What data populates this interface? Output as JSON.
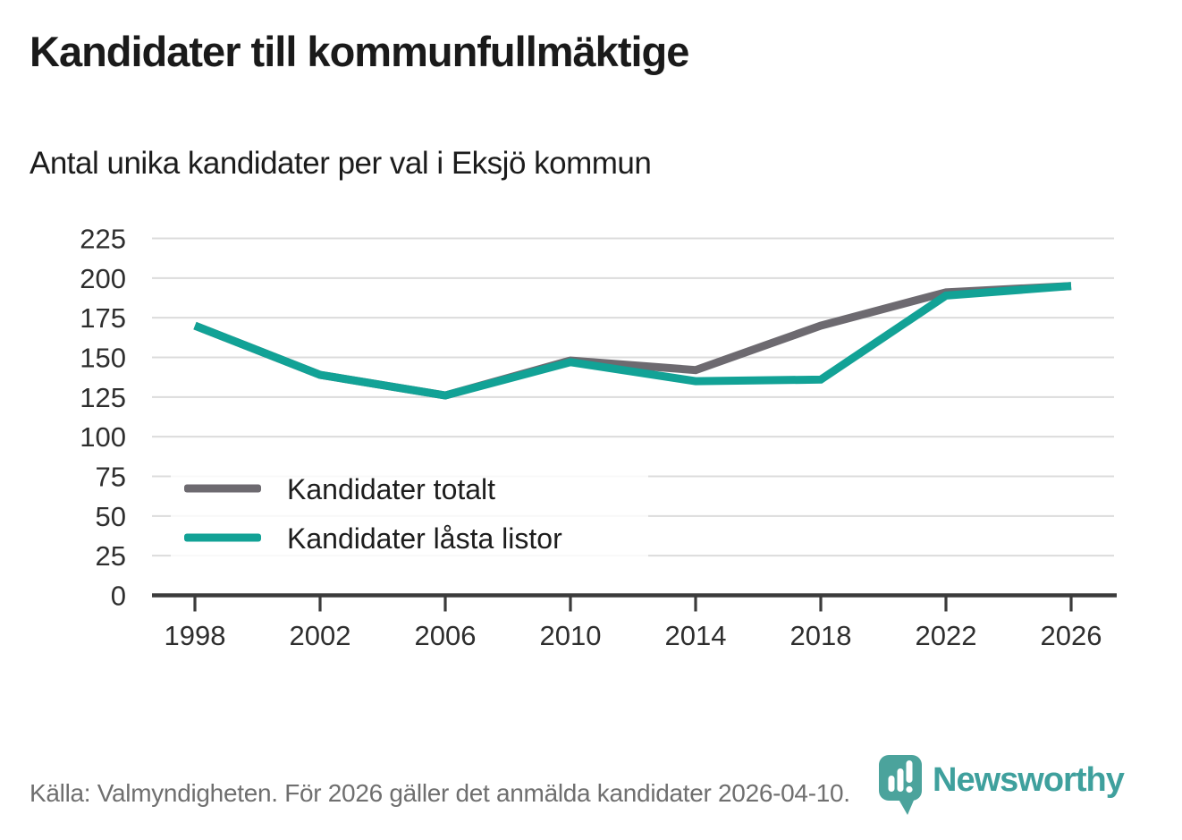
{
  "chart_data": {
    "type": "line",
    "title": "Kandidater till kommunfullmäktige",
    "subtitle": "Antal unika kandidater per val i Eksjö kommun",
    "source": "Källa: Valmyndigheten. För 2026 gäller det anmälda kandidater 2026-04-10.",
    "x": [
      "1998",
      "2002",
      "2006",
      "2010",
      "2014",
      "2018",
      "2022",
      "2026"
    ],
    "series": [
      {
        "name": "Kandidater totalt",
        "color": "#6d6a70",
        "values": [
          170,
          139,
          126,
          148,
          142,
          170,
          191,
          195
        ]
      },
      {
        "name": "Kandidater låsta listor",
        "color": "#12a296",
        "values": [
          170,
          139,
          126,
          147,
          135,
          136,
          189,
          195
        ]
      }
    ],
    "xlabel": "",
    "ylabel": "",
    "ylim": [
      0,
      225
    ],
    "ytick_step": 25,
    "grid": "horizontal",
    "legend_position": "inside-bottom-left"
  },
  "branding": {
    "logo_text": "Newsworthy",
    "logo_teal": "#4ba39c"
  },
  "colors": {
    "accent_teal": "#12a296",
    "line_gray": "#6d6a70",
    "gridline": "#dcdcdc",
    "axis": "#3b3b3b",
    "footer_text": "#6f6f6f"
  }
}
